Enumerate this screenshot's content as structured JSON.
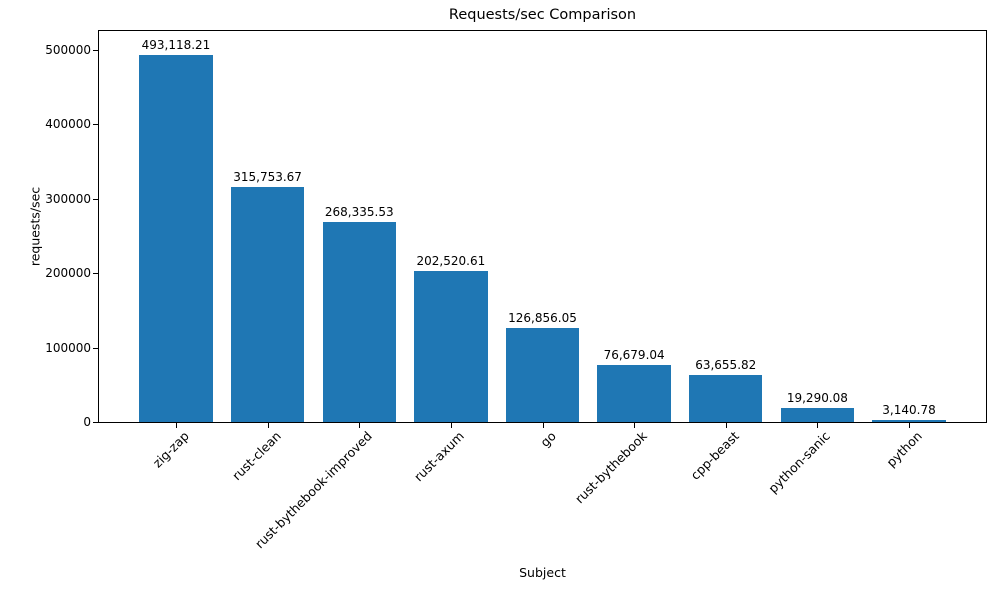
{
  "chart_data": {
    "type": "bar",
    "title": "Requests/sec Comparison",
    "xlabel": "Subject",
    "ylabel": "requests/sec",
    "categories": [
      "zig-zap",
      "rust-clean",
      "rust-bythebook-improved",
      "rust-axum",
      "go",
      "rust-bythebook",
      "cpp-beast",
      "python-sanic",
      "python"
    ],
    "values": [
      493118.21,
      315753.67,
      268335.53,
      202520.61,
      126856.05,
      76679.04,
      63655.82,
      19290.08,
      3140.78
    ],
    "bar_labels": [
      "493,118.21",
      "315,753.67",
      "268,335.53",
      "202,520.61",
      "126,856.05",
      "76,679.04",
      "63,655.82",
      "19,290.08",
      "3,140.78"
    ],
    "yticks": [
      0,
      100000,
      200000,
      300000,
      400000,
      500000
    ],
    "ytick_labels": [
      "0",
      "100000",
      "200000",
      "300000",
      "400000",
      "500000"
    ],
    "ylim": [
      0,
      525000
    ],
    "bar_color": "#1f77b4",
    "grid": false,
    "legend_position": "none",
    "xtick_rotation_deg": 45
  }
}
